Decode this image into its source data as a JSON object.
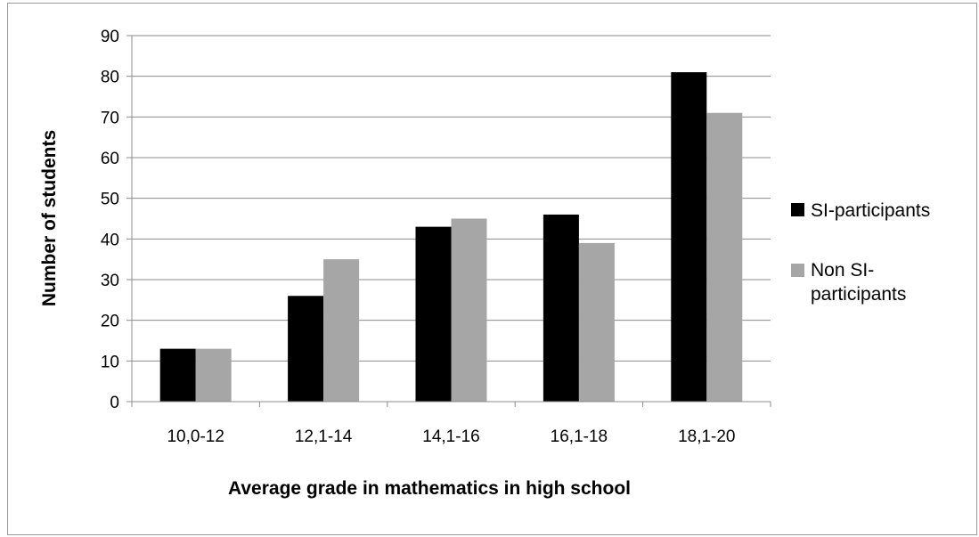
{
  "chart_data": {
    "type": "bar",
    "categories": [
      "10,0-12",
      "12,1-14",
      "14,1-16",
      "16,1-18",
      "18,1-20"
    ],
    "series": [
      {
        "name": "SI-participants",
        "values": [
          13,
          26,
          43,
          46,
          81
        ],
        "color": "#000000"
      },
      {
        "name": "Non SI-participants",
        "name_lines": [
          "Non SI-",
          "participants"
        ],
        "values": [
          13,
          35,
          45,
          39,
          71
        ],
        "color": "#a6a6a6"
      }
    ],
    "title": "",
    "xlabel": "Average grade in mathematics in high school",
    "ylabel": "Number of students",
    "ylim": [
      0,
      90
    ],
    "yticks": [
      0,
      10,
      20,
      30,
      40,
      50,
      60,
      70,
      80,
      90
    ],
    "grid": true,
    "legend": "right"
  }
}
